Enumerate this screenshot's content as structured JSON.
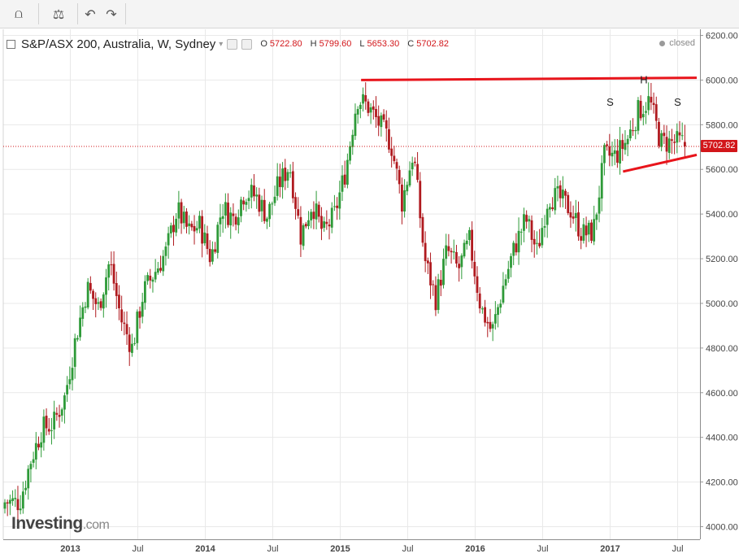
{
  "toolbar": {
    "buttons": [
      {
        "name": "indicators-button",
        "glyph": "⩍"
      },
      {
        "name": "compare-button",
        "glyph": "⚖"
      },
      {
        "name": "undo-button",
        "glyph": "↶"
      },
      {
        "name": "redo-button",
        "glyph": "↷"
      }
    ]
  },
  "legend": {
    "symbol": "S&P/ASX 200, Australia, W, Sydney",
    "open_label": "O",
    "open": "5722.80",
    "high_label": "H",
    "high": "5799.60",
    "low_label": "L",
    "low": "5653.30",
    "close_label": "C",
    "close": "5702.82"
  },
  "status": "closed",
  "logo": {
    "name": "Investing",
    "domain": ".com"
  },
  "price_tag": "5702.82",
  "colors": {
    "up": "#2e9a38",
    "down": "#b01a1f",
    "annotation": "#e8141b",
    "last_price": "#d2161a",
    "grid": "#e9e9e9",
    "axis_text": "#444444"
  },
  "chart_data": {
    "type": "candlestick",
    "title": "S&P/ASX 200, Australia, W, Sydney",
    "xlabel": "",
    "ylabel": "",
    "x_ticks": [
      "2013",
      "Jul",
      "2014",
      "Jul",
      "2015",
      "Jul",
      "2016",
      "Jul",
      "2017",
      "Jul"
    ],
    "y_ticks": [
      4000,
      4200,
      4400,
      4600,
      4800,
      5000,
      5200,
      5400,
      5600,
      5800,
      6000,
      6200
    ],
    "ylim": [
      3975,
      6220
    ],
    "grid": true,
    "last_close": 5702.82,
    "annotations": {
      "labels": [
        "S",
        "H",
        "S"
      ],
      "resistance": {
        "from": [
          "2015-03",
          6000
        ],
        "to": [
          "2017-08",
          6010
        ]
      },
      "support": {
        "from": [
          "2017-02",
          5590
        ],
        "to": [
          "2017-08",
          5665
        ]
      }
    },
    "anchors": [
      [
        "2012-08",
        4110
      ],
      [
        "2012-09",
        4300
      ],
      [
        "2012-10",
        4440
      ],
      [
        "2012-11",
        4460
      ],
      [
        "2012-12",
        4580
      ],
      [
        "2013-01",
        4850
      ],
      [
        "2013-02",
        5070
      ],
      [
        "2013-03",
        4980
      ],
      [
        "2013-04",
        5190
      ],
      [
        "2013-05",
        4930
      ],
      [
        "2013-06",
        4800
      ],
      [
        "2013-07",
        5050
      ],
      [
        "2013-08",
        5140
      ],
      [
        "2013-09",
        5230
      ],
      [
        "2013-10",
        5420
      ],
      [
        "2013-11",
        5320
      ],
      [
        "2013-12",
        5350
      ],
      [
        "2014-01",
        5200
      ],
      [
        "2014-02",
        5430
      ],
      [
        "2014-03",
        5380
      ],
      [
        "2014-04",
        5500
      ],
      [
        "2014-05",
        5480
      ],
      [
        "2014-06",
        5390
      ],
      [
        "2014-07",
        5530
      ],
      [
        "2014-08",
        5620
      ],
      [
        "2014-09",
        5300
      ],
      [
        "2014-10",
        5450
      ],
      [
        "2014-11",
        5310
      ],
      [
        "2014-12",
        5400
      ],
      [
        "2015-01",
        5600
      ],
      [
        "2015-02",
        5920
      ],
      [
        "2015-03",
        5880
      ],
      [
        "2015-04",
        5800
      ],
      [
        "2015-05",
        5720
      ],
      [
        "2015-06",
        5450
      ],
      [
        "2015-07",
        5680
      ],
      [
        "2015-08",
        5200
      ],
      [
        "2015-09",
        5020
      ],
      [
        "2015-10",
        5240
      ],
      [
        "2015-11",
        5150
      ],
      [
        "2015-12",
        5280
      ],
      [
        "2016-01",
        4980
      ],
      [
        "2016-02",
        4870
      ],
      [
        "2016-03",
        5080
      ],
      [
        "2016-04",
        5250
      ],
      [
        "2016-05",
        5380
      ],
      [
        "2016-06",
        5230
      ],
      [
        "2016-07",
        5480
      ],
      [
        "2016-08",
        5470
      ],
      [
        "2016-09",
        5420
      ],
      [
        "2016-10",
        5310
      ],
      [
        "2016-11",
        5320
      ],
      [
        "2016-12",
        5660
      ],
      [
        "2017-01",
        5660
      ],
      [
        "2017-02",
        5730
      ],
      [
        "2017-03",
        5860
      ],
      [
        "2017-04",
        5910
      ],
      [
        "2017-05",
        5720
      ],
      [
        "2017-06",
        5720
      ],
      [
        "2017-07",
        5720
      ],
      [
        "2017-08",
        5700
      ]
    ]
  }
}
